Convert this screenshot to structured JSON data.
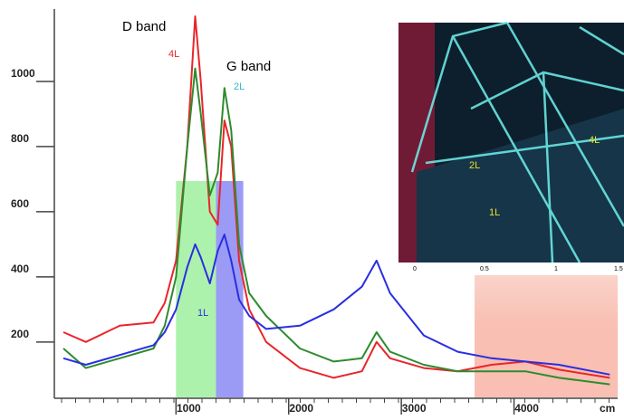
{
  "chart_data": {
    "type": "line",
    "annotations": {
      "d_band": "D band",
      "g_band": "G band",
      "red_label": "4L",
      "green_label": "2L",
      "blue_label": "1L",
      "x_unit": "cm"
    },
    "x": [
      0,
      200,
      500,
      800,
      900,
      1000,
      1100,
      1170,
      1220,
      1300,
      1370,
      1430,
      1490,
      1560,
      1650,
      1800,
      2100,
      2400,
      2650,
      2780,
      2900,
      3200,
      3500,
      3800,
      4100,
      4400,
      4850
    ],
    "series": [
      {
        "name": "4L",
        "color": "#e8262a",
        "values": [
          230,
          200,
          250,
          260,
          320,
          450,
          800,
          1200,
          1000,
          600,
          560,
          880,
          800,
          450,
          300,
          200,
          120,
          90,
          110,
          200,
          150,
          120,
          110,
          130,
          140,
          115,
          90
        ]
      },
      {
        "name": "2L",
        "color": "#2e8b2e",
        "values": [
          180,
          120,
          150,
          180,
          250,
          400,
          800,
          1040,
          900,
          650,
          720,
          980,
          850,
          500,
          350,
          280,
          180,
          140,
          150,
          230,
          170,
          130,
          110,
          110,
          110,
          90,
          70
        ]
      },
      {
        "name": "1L",
        "color": "#2a2ee0",
        "values": [
          150,
          130,
          160,
          190,
          230,
          300,
          430,
          500,
          460,
          380,
          480,
          530,
          450,
          330,
          280,
          240,
          250,
          300,
          370,
          450,
          350,
          220,
          170,
          150,
          140,
          130,
          100
        ]
      }
    ],
    "bands": [
      {
        "from": 1000,
        "to": 1355,
        "color": "#9ef09e"
      },
      {
        "from": 1355,
        "to": 1597,
        "color": "#8a8af5"
      },
      {
        "from": 3650,
        "to": 4920,
        "color": "#f7b4a4"
      }
    ],
    "xlim": [
      -80,
      4920
    ],
    "xticks": [
      1000,
      2000,
      3000,
      4000
    ],
    "ylim": [
      30,
      1250
    ],
    "yticks": [
      200,
      400,
      600,
      800,
      1000
    ],
    "inset": {
      "labels": [
        "2L",
        "1L",
        "4L"
      ],
      "xticks": [
        "0",
        "0.5",
        "1",
        "1.5"
      ]
    }
  }
}
